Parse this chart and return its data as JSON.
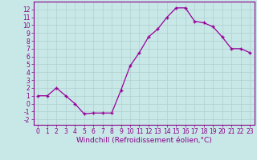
{
  "x": [
    0,
    1,
    2,
    3,
    4,
    5,
    6,
    7,
    8,
    9,
    10,
    11,
    12,
    13,
    14,
    15,
    16,
    17,
    18,
    19,
    20,
    21,
    22,
    23
  ],
  "y": [
    1,
    1,
    2,
    1,
    0,
    -1.3,
    -1.2,
    -1.2,
    -1.2,
    1.7,
    4.8,
    6.5,
    8.5,
    9.5,
    11.0,
    12.2,
    12.2,
    10.5,
    10.3,
    9.8,
    8.5,
    7.0,
    7.0,
    6.5
  ],
  "line_color": "#990099",
  "marker": "+",
  "marker_size": 3,
  "linewidth": 0.9,
  "bg_color": "#c8e8e8",
  "grid_color": "#b0d0d0",
  "xlabel": "Windchill (Refroidissement éolien,°C)",
  "ylabel_ticks": [
    -2,
    -1,
    0,
    1,
    2,
    3,
    4,
    5,
    6,
    7,
    8,
    9,
    10,
    11,
    12
  ],
  "xlim": [
    -0.5,
    23.5
  ],
  "ylim": [
    -2.7,
    13.0
  ],
  "xticks": [
    0,
    1,
    2,
    3,
    4,
    5,
    6,
    7,
    8,
    9,
    10,
    11,
    12,
    13,
    14,
    15,
    16,
    17,
    18,
    19,
    20,
    21,
    22,
    23
  ],
  "tick_fontsize": 5.5,
  "xlabel_fontsize": 6.5,
  "tick_color": "#880088",
  "spine_color": "#880088"
}
